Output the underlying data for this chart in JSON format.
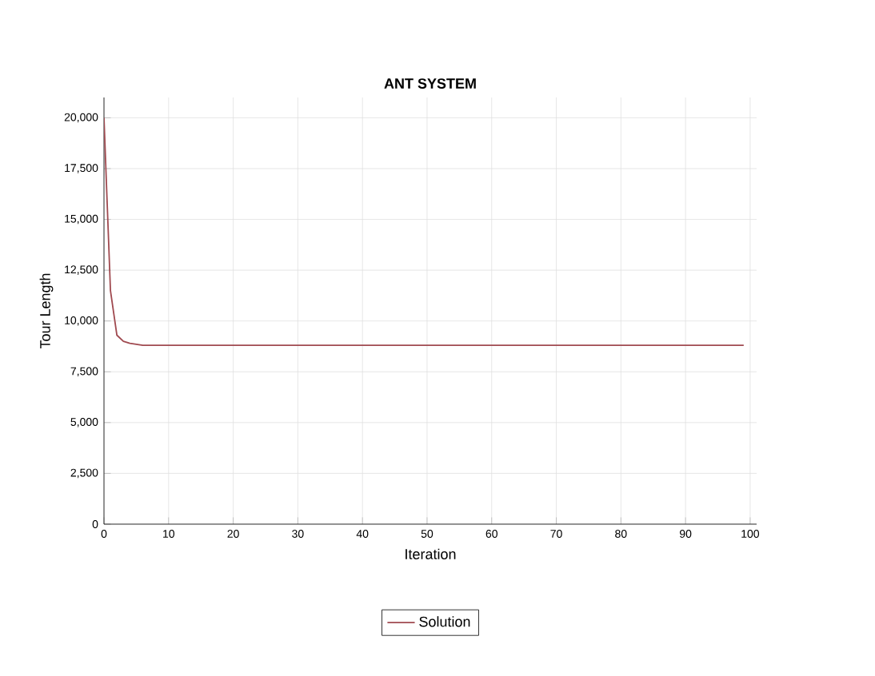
{
  "chart_data": {
    "type": "line",
    "title": "ANT SYSTEM",
    "xlabel": "Iteration",
    "ylabel": "Tour Length",
    "x": [
      0,
      1,
      2,
      3,
      4,
      5,
      6,
      10,
      20,
      40,
      60,
      80,
      99
    ],
    "series": [
      {
        "name": "Solution",
        "color": "#a04a50",
        "values": [
          20000,
          11500,
          9300,
          9000,
          8900,
          8850,
          8800,
          8800,
          8800,
          8800,
          8800,
          8800,
          8800
        ]
      }
    ],
    "xlim": [
      0,
      101
    ],
    "ylim": [
      0,
      21000
    ],
    "xticks": [
      0,
      10,
      20,
      30,
      40,
      50,
      60,
      70,
      80,
      90,
      100
    ],
    "yticks": [
      {
        "value": 0,
        "label": "0"
      },
      {
        "value": 2500,
        "label": "2,500"
      },
      {
        "value": 5000,
        "label": "5,000"
      },
      {
        "value": 7500,
        "label": "7,500"
      },
      {
        "value": 10000,
        "label": "10,000"
      },
      {
        "value": 12500,
        "label": "12,500"
      },
      {
        "value": 15000,
        "label": "15,000"
      },
      {
        "value": 17500,
        "label": "17,500"
      },
      {
        "value": 20000,
        "label": "20,000"
      }
    ],
    "grid": true,
    "legend": "bottom",
    "marker": "none",
    "line_style": "solid"
  }
}
